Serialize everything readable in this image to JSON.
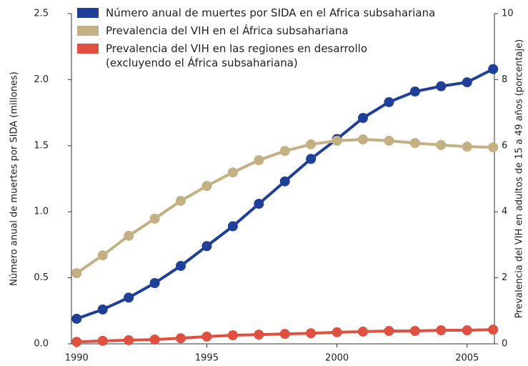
{
  "chart_data": {
    "type": "line",
    "x": [
      1990,
      1991,
      1992,
      1993,
      1994,
      1995,
      1996,
      1997,
      1998,
      1999,
      2000,
      2001,
      2002,
      2003,
      2004,
      2005,
      2006
    ],
    "series": [
      {
        "name": "Número anual de muertes por SIDA en el Africa subsahariana",
        "color": "#1f3f99",
        "axis": "y",
        "values": [
          0.19,
          0.26,
          0.35,
          0.46,
          0.59,
          0.74,
          0.89,
          1.06,
          1.23,
          1.4,
          1.55,
          1.71,
          1.83,
          1.91,
          1.95,
          1.98,
          2.08
        ]
      },
      {
        "name": "Prevalencia del VIH en el África subsahariana",
        "color": "#c3b083",
        "axis": "y2",
        "values": [
          2.14,
          2.68,
          3.27,
          3.79,
          4.33,
          4.78,
          5.19,
          5.56,
          5.84,
          6.04,
          6.15,
          6.19,
          6.15,
          6.08,
          6.02,
          5.97,
          5.95
        ]
      },
      {
        "name": "Prevalencia del VIH en las regiones en desarrollo\n(excluyendo el África subsahariana)",
        "color": "#e05040",
        "axis": "y2",
        "values": [
          0.06,
          0.09,
          0.11,
          0.13,
          0.17,
          0.22,
          0.26,
          0.28,
          0.3,
          0.32,
          0.35,
          0.37,
          0.39,
          0.39,
          0.41,
          0.41,
          0.43
        ]
      }
    ],
    "ylabel": "Número anual de muertes por SIDA (millones)",
    "y2label": "Prevalencia del VIH en adultos de 15 a 49 años (porcentaje)",
    "xlim": [
      1989.8,
      2006.05
    ],
    "xticks": [
      1990,
      1995,
      2000,
      2005
    ],
    "ylim": [
      0,
      2.5
    ],
    "yticks": [
      {
        "value": 0,
        "label": "0.0"
      },
      0.5,
      {
        "value": 1,
        "label": "1.0"
      },
      1.5,
      {
        "value": 2,
        "label": "2.0"
      },
      2.5
    ],
    "y2lim": [
      0,
      10
    ],
    "y2ticks": [
      0,
      2,
      4,
      6,
      8,
      10
    ],
    "grid": false,
    "legend": "top-left"
  }
}
